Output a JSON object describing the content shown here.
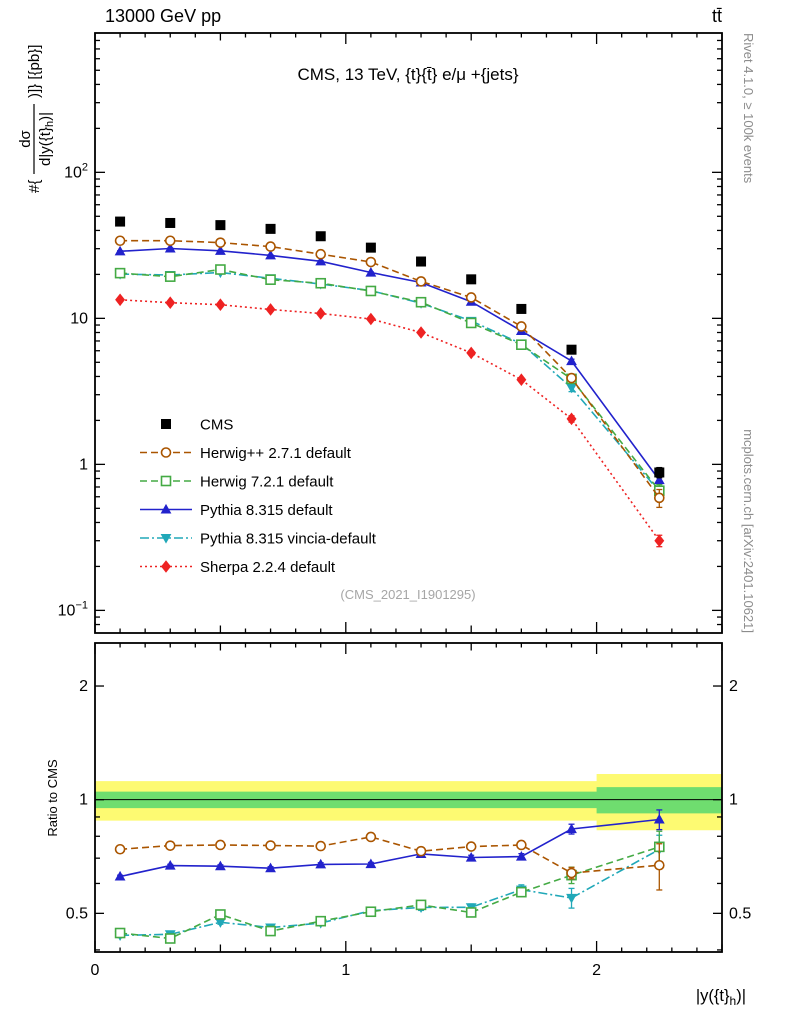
{
  "header": {
    "left": "13000 GeV pp",
    "right": "tt̄"
  },
  "side_notes": {
    "rivet": "Rivet 4.1.0, ≥ 100k events",
    "mcplots": "mcplots.cern.ch [arXiv:2401.10621]"
  },
  "watermark": "(CMS_2021_I1901295)",
  "chart_data": {
    "type": "line",
    "title": "CMS, 13 TeV, {t}{t̄} e/μ +{jets}",
    "xlabel": "|y({t}_h)|",
    "xlabel_parts": {
      "pre": "|y({t}",
      "sub": "h",
      "post": ")|"
    },
    "ylabel_parts": {
      "prefix": "#{",
      "numerator": "dσ",
      "den_pre": "d|y({t}",
      "den_sub": "h",
      "den_post": ")|",
      "suffix": ")]} [{pb}]"
    },
    "ratio_label": "Ratio to CMS",
    "x_range": [
      0,
      2.5
    ],
    "y_range_main": [
      0.07,
      900
    ],
    "y_scale_main": "log",
    "ratio_range": [
      0.395,
      2.6
    ],
    "ratio_scale": "log",
    "x_tick_labels": [
      {
        "v": 0,
        "label": "0"
      },
      {
        "v": 1,
        "label": "1"
      },
      {
        "v": 2,
        "label": "2"
      }
    ],
    "y_tick_labels_main": [
      {
        "v": 0.1,
        "base": "10",
        "exp": "−1"
      },
      {
        "v": 1,
        "base": "1",
        "exp": ""
      },
      {
        "v": 10,
        "base": "10",
        "exp": ""
      },
      {
        "v": 100,
        "base": "10",
        "exp": "2"
      }
    ],
    "ratio_tick_labels": [
      {
        "v": 0.5,
        "label": "0.5"
      },
      {
        "v": 1,
        "label": "1"
      },
      {
        "v": 2,
        "label": "2"
      }
    ],
    "x": [
      0.1,
      0.3,
      0.5,
      0.7,
      0.9,
      1.1,
      1.3,
      1.5,
      1.7,
      1.9,
      2.25
    ],
    "reference_series": "CMS",
    "series": [
      {
        "name": "CMS",
        "color": "#000000",
        "marker": "square-filled",
        "line": "none",
        "dash": "",
        "values": [
          46,
          45,
          43.5,
          41,
          36.5,
          30.5,
          24.5,
          18.5,
          11.6,
          6.1,
          0.88
        ],
        "rel_err": [
          0.02,
          0.02,
          0.02,
          0.02,
          0.02,
          0.02,
          0.025,
          0.025,
          0.03,
          0.04,
          0.08
        ]
      },
      {
        "name": "Herwig++ 2.7.1 default",
        "color": "#aa5500",
        "marker": "circle-open",
        "line": "dashed",
        "dash": "7,4",
        "values": [
          34,
          34,
          33,
          31,
          27.5,
          24.3,
          17.9,
          13.9,
          8.8,
          3.9,
          0.59
        ],
        "rel_err": [
          0.01,
          0.01,
          0.01,
          0.01,
          0.012,
          0.013,
          0.015,
          0.018,
          0.022,
          0.035,
          0.14
        ]
      },
      {
        "name": "Herwig 7.2.1 default",
        "color": "#44aa44",
        "marker": "square-open",
        "line": "dashed",
        "dash": "7,4",
        "values": [
          20.4,
          19.3,
          21.6,
          18.4,
          17.4,
          15.4,
          12.9,
          9.3,
          6.6,
          3.85,
          0.66
        ],
        "rel_err": [
          0.012,
          0.012,
          0.012,
          0.013,
          0.014,
          0.015,
          0.018,
          0.02,
          0.025,
          0.05,
          0.1
        ]
      },
      {
        "name": "Pythia 8.315 default",
        "color": "#2222cc",
        "marker": "triangle-up-filled",
        "line": "solid",
        "dash": "",
        "values": [
          28.8,
          30.1,
          29,
          27,
          24.6,
          20.6,
          17.6,
          13,
          8.2,
          5.1,
          0.78
        ],
        "rel_err": [
          0.008,
          0.008,
          0.008,
          0.009,
          0.01,
          0.01,
          0.012,
          0.014,
          0.018,
          0.03,
          0.06
        ]
      },
      {
        "name": "Pythia 8.315 vincia-default",
        "color": "#20a8b8",
        "marker": "triangle-down-filled",
        "line": "dashdot",
        "dash": "9,3,2,3",
        "values": [
          20.1,
          19.8,
          20.6,
          18.8,
          17.2,
          15.5,
          12.7,
          9.6,
          6.7,
          3.35,
          0.65
        ],
        "rel_err": [
          0.012,
          0.012,
          0.012,
          0.013,
          0.014,
          0.015,
          0.018,
          0.02,
          0.03,
          0.06,
          0.09
        ]
      },
      {
        "name": "Sherpa 2.2.4 default",
        "color": "#ee2222",
        "marker": "diamond-filled",
        "line": "dotted",
        "dash": "2,3",
        "values": [
          13.4,
          12.8,
          12.4,
          11.5,
          10.8,
          9.9,
          8.0,
          5.8,
          3.8,
          2.05,
          0.3
        ],
        "rel_err": [
          0.015,
          0.015,
          0.015,
          0.016,
          0.017,
          0.018,
          0.02,
          0.025,
          0.03,
          0.05,
          0.09
        ]
      }
    ],
    "bands": {
      "bin_edges": [
        0,
        0.2,
        0.4,
        0.6,
        0.8,
        1.0,
        1.2,
        1.4,
        1.6,
        1.8,
        2.0,
        2.5
      ],
      "yellow_rel": [
        0.12,
        0.12,
        0.12,
        0.12,
        0.12,
        0.12,
        0.12,
        0.12,
        0.12,
        0.12,
        0.17
      ],
      "green_rel": [
        0.05,
        0.05,
        0.05,
        0.05,
        0.05,
        0.05,
        0.05,
        0.05,
        0.05,
        0.05,
        0.08
      ],
      "yellow_color": "#fdfa72",
      "green_color": "#6fdd6f"
    },
    "legend_position": "left-middle",
    "grid": false
  }
}
